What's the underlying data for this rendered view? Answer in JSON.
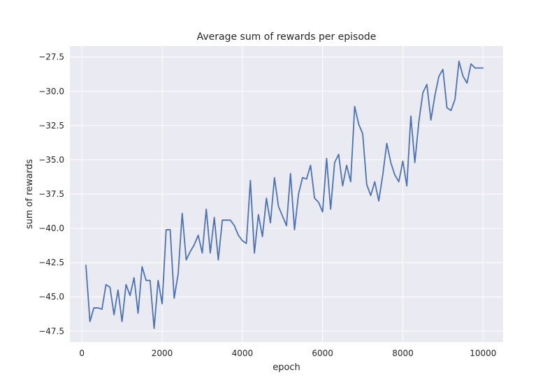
{
  "chart_data": {
    "type": "line",
    "title": "Average sum of rewards per episode",
    "xlabel": "epoch",
    "ylabel": "sum of rewards",
    "xlim": [
      -300,
      10500
    ],
    "ylim": [
      -48.3,
      -26.7
    ],
    "xticks": [
      0,
      2000,
      4000,
      6000,
      8000,
      10000
    ],
    "xtick_labels": [
      "0",
      "2000",
      "4000",
      "6000",
      "8000",
      "10000"
    ],
    "yticks": [
      -47.5,
      -45.0,
      -42.5,
      -40.0,
      -37.5,
      -35.0,
      -32.5,
      -30.0,
      -27.5
    ],
    "ytick_labels": [
      "−47.5",
      "−45.0",
      "−42.5",
      "−40.0",
      "−37.5",
      "−35.0",
      "−32.5",
      "−30.0",
      "−27.5"
    ],
    "grid": true,
    "series": [
      {
        "color": "#4c72b0",
        "x": [
          100,
          200,
          300,
          400,
          500,
          600,
          700,
          800,
          900,
          1000,
          1100,
          1200,
          1300,
          1400,
          1500,
          1600,
          1700,
          1800,
          1900,
          2000,
          2100,
          2200,
          2300,
          2400,
          2500,
          2600,
          2700,
          2800,
          2900,
          3000,
          3100,
          3200,
          3300,
          3400,
          3500,
          3600,
          3700,
          3800,
          3900,
          4000,
          4100,
          4200,
          4300,
          4400,
          4500,
          4600,
          4700,
          4800,
          4900,
          5000,
          5100,
          5200,
          5300,
          5400,
          5500,
          5600,
          5700,
          5800,
          5900,
          6000,
          6100,
          6200,
          6300,
          6400,
          6500,
          6600,
          6700,
          6800,
          6900,
          7000,
          7100,
          7200,
          7300,
          7400,
          7500,
          7600,
          7700,
          7800,
          7900,
          8000,
          8100,
          8200,
          8300,
          8400,
          8500,
          8600,
          8700,
          8800,
          8900,
          9000,
          9100,
          9200,
          9300,
          9400,
          9500,
          9600,
          9700,
          9800,
          9900,
          10000
        ],
        "y": [
          -42.7,
          -46.8,
          -45.8,
          -45.8,
          -45.9,
          -44.1,
          -44.3,
          -46.3,
          -44.5,
          -46.8,
          -44.1,
          -44.9,
          -43.6,
          -46.2,
          -42.8,
          -43.8,
          -43.8,
          -47.3,
          -43.8,
          -45.5,
          -40.1,
          -40.1,
          -45.1,
          -43.3,
          -38.9,
          -42.3,
          -41.7,
          -41.2,
          -40.5,
          -41.8,
          -38.6,
          -41.8,
          -39.2,
          -42.3,
          -39.4,
          -39.4,
          -39.4,
          -39.8,
          -40.5,
          -40.9,
          -41.1,
          -36.5,
          -41.8,
          -39.0,
          -40.6,
          -37.8,
          -39.6,
          -36.3,
          -38.4,
          -39.1,
          -39.8,
          -36.0,
          -40.1,
          -37.5,
          -36.3,
          -36.4,
          -35.4,
          -37.8,
          -38.1,
          -38.8,
          -34.9,
          -38.6,
          -35.2,
          -34.6,
          -36.9,
          -35.4,
          -36.6,
          -31.1,
          -32.4,
          -33.1,
          -36.8,
          -37.6,
          -36.6,
          -38.0,
          -36.1,
          -33.8,
          -35.2,
          -36.1,
          -36.6,
          -35.1,
          -36.9,
          -31.8,
          -35.2,
          -32.2,
          -30.1,
          -29.5,
          -32.1,
          -30.3,
          -28.9,
          -28.4,
          -31.2,
          -31.4,
          -30.6,
          -27.8,
          -28.9,
          -29.4,
          -28.0,
          -28.3,
          -28.3,
          -28.3
        ]
      }
    ]
  }
}
